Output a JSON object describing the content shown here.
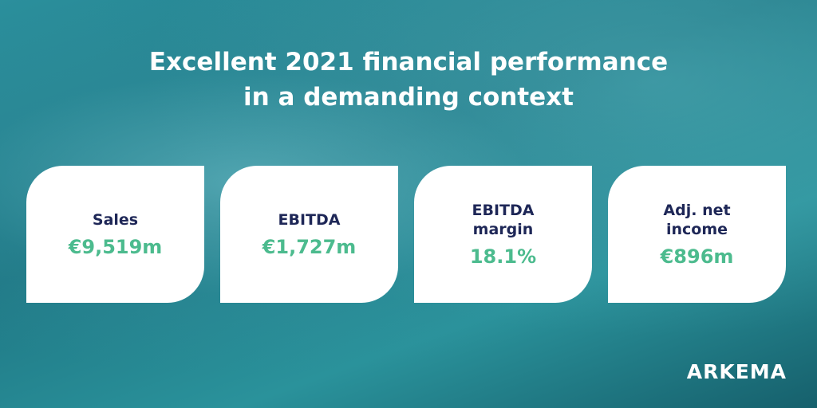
{
  "header": {
    "title_lines": [
      "Excellent 2021 financial performance",
      "in a demanding context"
    ]
  },
  "cards": [
    {
      "label": "Sales",
      "value": "€9,519m"
    },
    {
      "label": "EBITDA",
      "value": "€1,727m"
    },
    {
      "label": "EBITDA margin",
      "value": "18.1%"
    },
    {
      "label": "Adj. net income",
      "value": "€896m"
    }
  ],
  "logo": "ARKEMA"
}
